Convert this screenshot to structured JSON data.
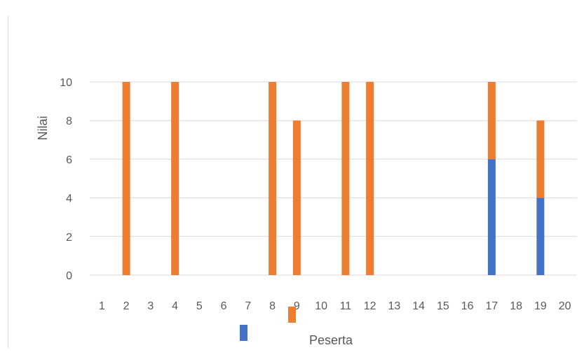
{
  "chart_data": {
    "type": "bar",
    "stacked": true,
    "categories": [
      "1",
      "2",
      "3",
      "4",
      "5",
      "6",
      "7",
      "8",
      "9",
      "10",
      "11",
      "12",
      "13",
      "14",
      "15",
      "16",
      "17",
      "18",
      "19",
      "20"
    ],
    "series": [
      {
        "name": "",
        "color": "#4472c4",
        "values": [
          0,
          0,
          0,
          0,
          0,
          0,
          0,
          0,
          0,
          0,
          0,
          0,
          0,
          0,
          0,
          0,
          6,
          0,
          4,
          0
        ]
      },
      {
        "name": "",
        "color": "#ed7d31",
        "values": [
          0,
          10,
          0,
          10,
          0,
          0,
          0,
          10,
          8,
          0,
          10,
          10,
          0,
          0,
          0,
          0,
          4,
          0,
          4,
          0
        ]
      }
    ],
    "title": "",
    "xlabel": "Peserta",
    "ylabel": "Nilai",
    "ylim": [
      0,
      10
    ],
    "yticks": [
      0,
      2,
      4,
      6,
      8,
      10
    ],
    "grid": true,
    "legend": "bottom"
  }
}
